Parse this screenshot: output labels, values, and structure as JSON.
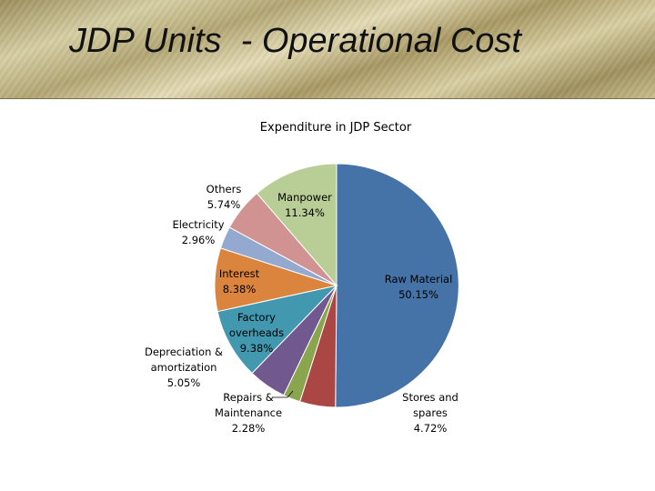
{
  "slide": {
    "title": "JDP Units  - Operational Cost"
  },
  "chart_data": {
    "type": "pie",
    "title": "Expenditure in JDP Sector",
    "slices": [
      {
        "label": "Raw Material",
        "value": 50.15,
        "display": "50.15%",
        "color": "#4572a7"
      },
      {
        "label": "Stores and spares",
        "value": 4.72,
        "display": "4.72%",
        "color": "#aa4643"
      },
      {
        "label": "Repairs & Maintenance",
        "value": 2.28,
        "display": "2.28%",
        "color": "#89a54e"
      },
      {
        "label": "Depreciation & amortization",
        "value": 5.05,
        "display": "5.05%",
        "color": "#71588f"
      },
      {
        "label": "Factory overheads",
        "value": 9.38,
        "display": "9.38%",
        "color": "#4198af"
      },
      {
        "label": "Interest",
        "value": 8.38,
        "display": "8.38%",
        "color": "#db843d"
      },
      {
        "label": "Electricity",
        "value": 2.96,
        "display": "2.96%",
        "color": "#93a9cf"
      },
      {
        "label": "Others",
        "value": 5.74,
        "display": "5.74%",
        "color": "#d19392"
      },
      {
        "label": "Manpower",
        "value": 11.34,
        "display": "11.34%",
        "color": "#b9cd96"
      }
    ]
  }
}
